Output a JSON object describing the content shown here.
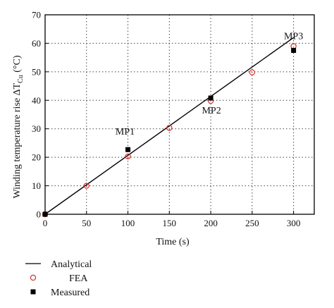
{
  "chart_data": {
    "type": "scatter",
    "xlabel": "Time (s)",
    "ylabel_main": "Winding temperature rise ΔT",
    "ylabel_sub": "Cu",
    "ylabel_unit": " (°C)",
    "xlim": [
      0,
      325
    ],
    "ylim": [
      0,
      70
    ],
    "xticks": [
      0,
      50,
      100,
      150,
      200,
      250,
      300
    ],
    "yticks": [
      0,
      10,
      20,
      30,
      40,
      50,
      60,
      70
    ],
    "grid": true,
    "legend_position": "bottom-left",
    "series": [
      {
        "name": "Analytical",
        "style": "line",
        "color": "#000000",
        "x": [
          0,
          300
        ],
        "y": [
          0,
          62
        ]
      },
      {
        "name": "FEA",
        "style": "open-circle",
        "color": "#d9302c",
        "x": [
          0,
          50,
          100,
          150,
          200,
          250,
          300
        ],
        "y": [
          0,
          10,
          20.3,
          30.3,
          39.8,
          49.8,
          59
        ]
      },
      {
        "name": "Measured",
        "style": "filled-square",
        "color": "#000000",
        "x": [
          0,
          100,
          200,
          300
        ],
        "y": [
          0,
          22.7,
          40.8,
          57.5
        ]
      }
    ],
    "annotations": [
      {
        "text": "MP1",
        "x": 100,
        "y": 22.7
      },
      {
        "text": "MP2",
        "x": 200,
        "y": 40.8
      },
      {
        "text": "MP3",
        "x": 300,
        "y": 57.5
      }
    ]
  }
}
